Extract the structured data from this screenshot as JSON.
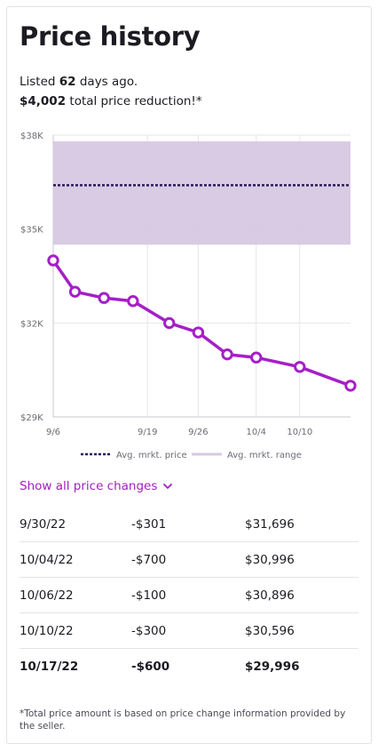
{
  "title": "Price history",
  "summary": {
    "listed_prefix": "Listed ",
    "listed_days": "62",
    "listed_suffix": " days ago.",
    "reduction_amount": "$4,002",
    "reduction_suffix": " total price reduction!*"
  },
  "colors": {
    "price_line": "#a51fc7",
    "avg_line": "#2c1a5c",
    "range_fill": "#d6c8e2",
    "link": "#a020c0"
  },
  "chart_data": {
    "type": "line",
    "title": "",
    "xlabel": "",
    "ylabel": "",
    "ylim": [
      29000,
      38000
    ],
    "y_ticks": [
      {
        "value": 38000,
        "label": "$38K"
      },
      {
        "value": 35000,
        "label": "$35K"
      },
      {
        "value": 32000,
        "label": "$32K"
      },
      {
        "value": 29000,
        "label": "$29K"
      }
    ],
    "x_ticks": [
      {
        "date": "2022-09-06",
        "label": "9/6"
      },
      {
        "date": "2022-09-19",
        "label": "9/19"
      },
      {
        "date": "2022-09-26",
        "label": "9/26"
      },
      {
        "date": "2022-10-04",
        "label": "10/4"
      },
      {
        "date": "2022-10-10",
        "label": "10/10"
      }
    ],
    "series": [
      {
        "name": "",
        "points": [
          {
            "date": "2022-09-06",
            "value": 33998
          },
          {
            "date": "2022-09-09",
            "value": 32998
          },
          {
            "date": "2022-09-13",
            "value": 32798
          },
          {
            "date": "2022-09-17",
            "value": 32698
          },
          {
            "date": "2022-09-22",
            "value": 31997
          },
          {
            "date": "2022-09-26",
            "value": 31696
          },
          {
            "date": "2022-09-30",
            "value": 30996
          },
          {
            "date": "2022-10-04",
            "value": 30896
          },
          {
            "date": "2022-10-10",
            "value": 30596
          },
          {
            "date": "2022-10-17",
            "value": 29996
          }
        ]
      }
    ],
    "avg_market_price": 36400,
    "avg_market_range": [
      34500,
      37800
    ],
    "legend": {
      "placement": "bottom",
      "avg_price_label": "Avg. mrkt. price",
      "avg_range_label": "Avg. mrkt. range"
    },
    "grid": true
  },
  "show_all_label": "Show all price changes",
  "price_changes": [
    {
      "date": "9/30/22",
      "change": "-$301",
      "price": "$31,696"
    },
    {
      "date": "10/04/22",
      "change": "-$700",
      "price": "$30,996"
    },
    {
      "date": "10/06/22",
      "change": "-$100",
      "price": "$30,896"
    },
    {
      "date": "10/10/22",
      "change": "-$300",
      "price": "$30,596"
    },
    {
      "date": "10/17/22",
      "change": "-$600",
      "price": "$29,996"
    }
  ],
  "footnote": "*Total price amount is based on price change information provided by the seller."
}
